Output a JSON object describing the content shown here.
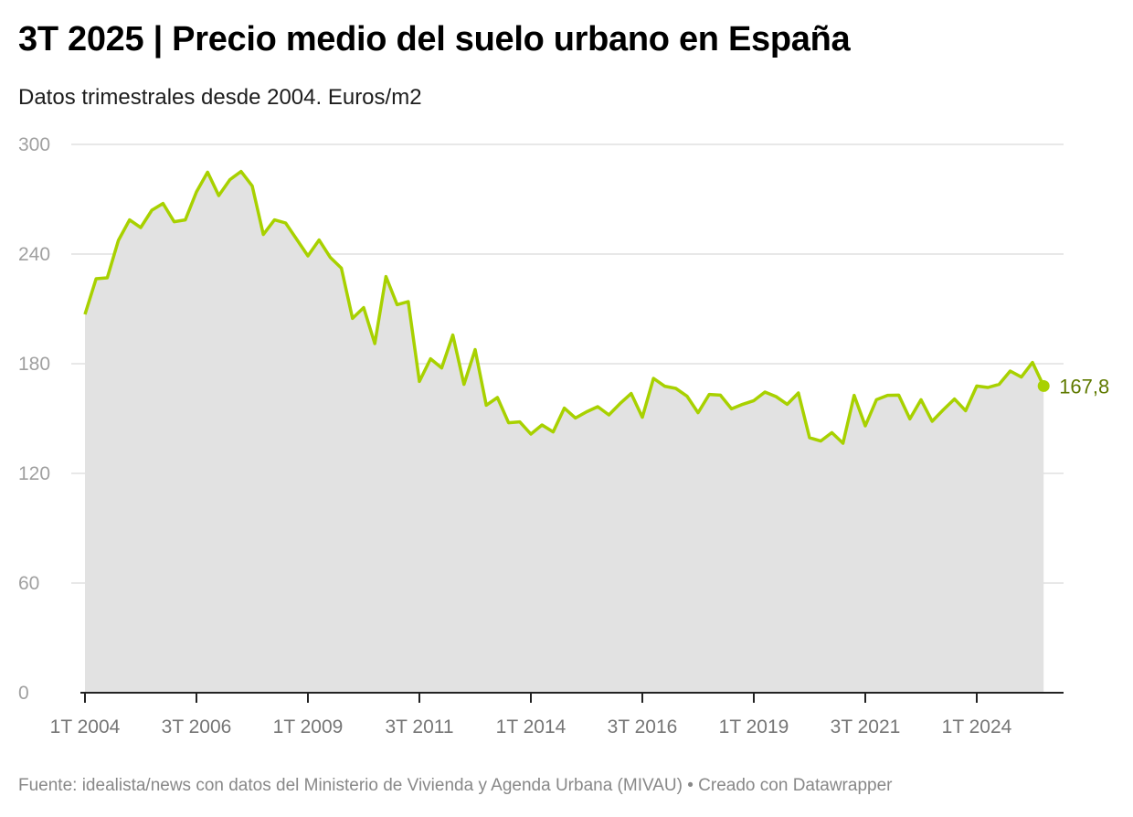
{
  "header": {
    "title": "3T 2025 | Precio medio del suelo urbano en España",
    "subtitle": "Datos trimestrales desde 2004. Euros/m2"
  },
  "footer": {
    "text": "Fuente: idealista/news con datos del Ministerio de Vivienda y Agenda Urbana (MIVAU) • Creado con Datawrapper"
  },
  "colors": {
    "line": "#a8d100",
    "area": "#e2e2e2",
    "grid": "#e0e0e0",
    "axis": "#222222",
    "end_label": "#5f7a00"
  },
  "chart_data": {
    "type": "area",
    "title": "3T 2025 | Precio medio del suelo urbano en España",
    "subtitle": "Datos trimestrales desde 2004. Euros/m2",
    "xlabel": "",
    "ylabel": "Euros/m2",
    "ylim": [
      0,
      300
    ],
    "yticks": [
      0,
      60,
      120,
      180,
      240,
      300
    ],
    "ytick_labels": [
      "0",
      "60",
      "120",
      "180",
      "240",
      "300"
    ],
    "grid": true,
    "legend": "none",
    "start": "1T 2004",
    "end": "3T 2025",
    "frequency": "quarterly",
    "xticks": [
      {
        "index": 0,
        "label": "1T 2004"
      },
      {
        "index": 10,
        "label": "3T 2006"
      },
      {
        "index": 20,
        "label": "1T 2009"
      },
      {
        "index": 30,
        "label": "3T 2011"
      },
      {
        "index": 40,
        "label": "1T 2014"
      },
      {
        "index": 50,
        "label": "3T 2016"
      },
      {
        "index": 60,
        "label": "1T 2019"
      },
      {
        "index": 70,
        "label": "3T 2021"
      },
      {
        "index": 80,
        "label": "1T 2024"
      }
    ],
    "series": [
      {
        "name": "Precio medio del suelo urbano (€/m2)",
        "values": [
          207,
          226.5,
          227,
          247.5,
          258.7,
          254.5,
          264,
          267.7,
          257.7,
          258.7,
          274,
          284.8,
          272,
          280.7,
          285.2,
          277.3,
          250.7,
          258.7,
          257,
          248,
          239,
          247.7,
          238.2,
          232.3,
          204.8,
          210.7,
          191,
          227.7,
          212.3,
          214,
          170.3,
          182.7,
          177.7,
          195.7,
          168.7,
          187.7,
          157.3,
          161.5,
          147.7,
          148.2,
          141.5,
          146.5,
          142.7,
          155.7,
          150.3,
          153.7,
          156.5,
          152,
          158.2,
          163.7,
          150.7,
          172,
          167.7,
          166.5,
          162.3,
          153.2,
          163.2,
          162.8,
          155.3,
          157.8,
          159.8,
          164.5,
          162,
          157.8,
          164,
          139.5,
          137.7,
          142.3,
          136.5,
          162.7,
          146,
          160.3,
          162.7,
          162.8,
          149.8,
          160.3,
          148.5,
          154.8,
          160.7,
          154.3,
          167.8,
          167,
          168.7,
          176,
          172.7,
          180.7,
          167.8
        ]
      }
    ],
    "annotations": [
      {
        "index": 86,
        "label": "167,8"
      }
    ]
  }
}
